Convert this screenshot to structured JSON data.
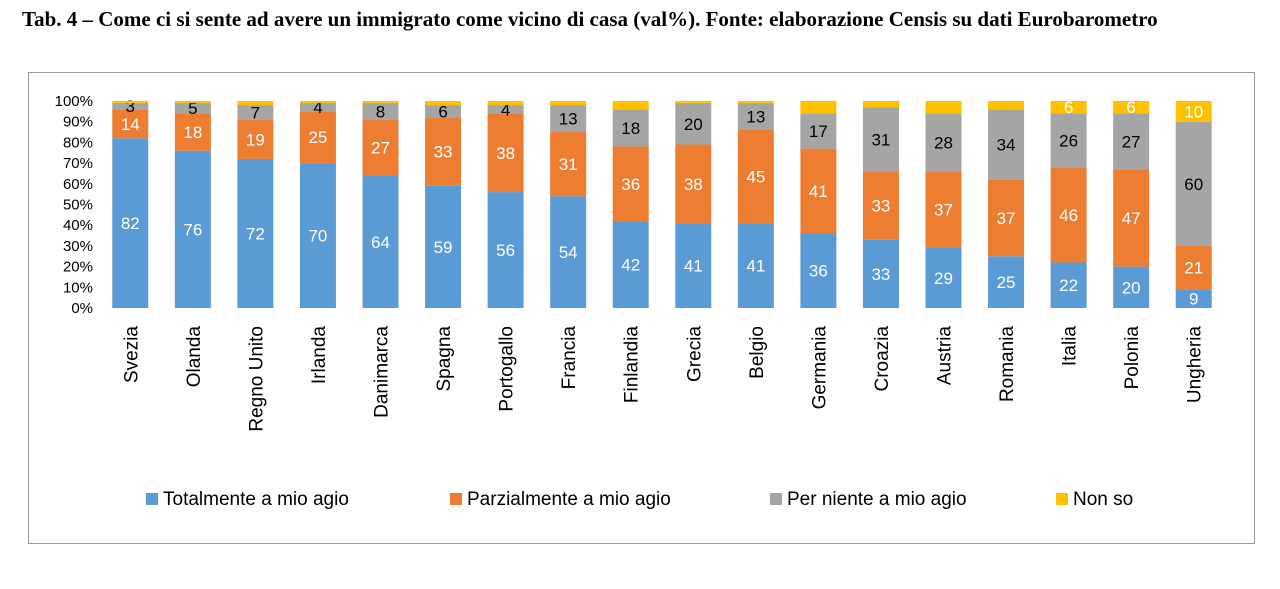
{
  "title": "Tab. 4 – Come ci si sente ad avere un immigrato come vicino di casa (val%). Fonte: elaborazione Censis su dati Eurobarometro",
  "chart_data": {
    "type": "bar",
    "stacked": true,
    "percent": true,
    "categories": [
      "Svezia",
      "Olanda",
      "Regno Unito",
      "Irlanda",
      "Danimarca",
      "Spagna",
      "Portogallo",
      "Francia",
      "Finlandia",
      "Grecia",
      "Belgio",
      "Germania",
      "Croazia",
      "Austria",
      "Romania",
      "Italia",
      "Polonia",
      "Ungheria"
    ],
    "series": [
      {
        "name": "Totalmente a mio agio",
        "color": "#5B9BD5",
        "label_color": "#ffffff",
        "values": [
          82,
          76,
          72,
          70,
          64,
          59,
          56,
          54,
          42,
          41,
          41,
          36,
          33,
          29,
          25,
          22,
          20,
          9
        ]
      },
      {
        "name": "Parzialmente a mio agio",
        "color": "#ED7D31",
        "label_color": "#ffffff",
        "values": [
          14,
          18,
          19,
          25,
          27,
          33,
          38,
          31,
          36,
          38,
          45,
          41,
          33,
          37,
          37,
          46,
          47,
          21
        ]
      },
      {
        "name": "Per niente a mio agio",
        "color": "#A5A5A5",
        "label_color": "#000000",
        "values": [
          3,
          5,
          7,
          4,
          8,
          6,
          4,
          13,
          18,
          20,
          13,
          17,
          31,
          28,
          34,
          26,
          27,
          60
        ]
      },
      {
        "name": "Non so",
        "color": "#FFC000",
        "label_color": "#ffffff",
        "values": [
          1,
          1,
          2,
          1,
          1,
          2,
          2,
          2,
          4,
          1,
          1,
          6,
          3,
          6,
          4,
          6,
          6,
          10
        ]
      }
    ],
    "labels": [
      [
        "82",
        "76",
        "72",
        "70",
        "64",
        "59",
        "56",
        "54",
        "42",
        "41",
        "41",
        "36",
        "33",
        "29",
        "25",
        "22",
        "20",
        "9"
      ],
      [
        "14",
        "18",
        "19",
        "25",
        "27",
        "33",
        "38",
        "31",
        "36",
        "38",
        "45",
        "41",
        "33",
        "37",
        "37",
        "46",
        "47",
        "21"
      ],
      [
        "3",
        "5",
        "7",
        "4",
        "8",
        "6",
        "4",
        "13",
        "18",
        "20",
        "13",
        "17",
        "31",
        "28",
        "34",
        "26",
        "27",
        "60"
      ],
      [
        "",
        "",
        "",
        "",
        "",
        "",
        "",
        "",
        "",
        "",
        "",
        "",
        "",
        "",
        "",
        "6",
        "6",
        "10"
      ]
    ],
    "ylim": [
      0,
      100
    ],
    "yticks": [
      "0%",
      "10%",
      "20%",
      "30%",
      "40%",
      "50%",
      "60%",
      "70%",
      "80%",
      "90%",
      "100%"
    ],
    "legend_position": "bottom"
  }
}
